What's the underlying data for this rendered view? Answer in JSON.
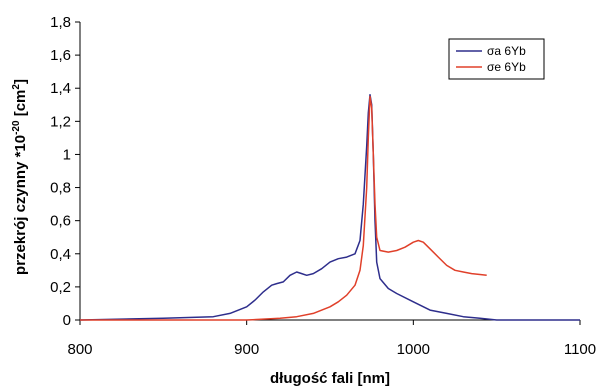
{
  "chart_data": {
    "type": "line",
    "title": "",
    "xlabel": "długość fali [nm]",
    "ylabel_prefix": "przekrój czynny *10",
    "ylabel_exponent": "-20",
    "ylabel_unit_base": " [cm",
    "ylabel_unit_exponent": "2",
    "ylabel_suffix": "]",
    "xlim": [
      800,
      1100
    ],
    "ylim": [
      0,
      1.8
    ],
    "x_ticks": [
      800,
      900,
      1000,
      1100
    ],
    "x_tick_labels": [
      "800",
      "900",
      "1000",
      "1100"
    ],
    "y_ticks": [
      0,
      0.2,
      0.4,
      0.6,
      0.8,
      1.0,
      1.2,
      1.4,
      1.6,
      1.8
    ],
    "y_tick_labels": [
      "0",
      "0,2",
      "0,4",
      "0,6",
      "0,8",
      "1",
      "1,2",
      "1,4",
      "1,6",
      "1,8"
    ],
    "grid": false,
    "legend_position": "top-right",
    "series": [
      {
        "name": "σa 6Yb",
        "color": "#2e2e8c",
        "x": [
          800,
          850,
          880,
          890,
          900,
          905,
          910,
          915,
          918,
          922,
          926,
          930,
          933,
          936,
          940,
          945,
          950,
          955,
          960,
          965,
          968,
          970,
          972,
          973,
          974,
          975,
          976,
          977,
          978,
          980,
          985,
          990,
          1000,
          1010,
          1020,
          1030,
          1040,
          1050,
          1060,
          1080,
          1100
        ],
        "y": [
          0.0,
          0.01,
          0.02,
          0.04,
          0.08,
          0.12,
          0.17,
          0.21,
          0.22,
          0.23,
          0.27,
          0.29,
          0.28,
          0.27,
          0.28,
          0.31,
          0.35,
          0.37,
          0.38,
          0.4,
          0.48,
          0.7,
          1.05,
          1.25,
          1.36,
          1.3,
          1.0,
          0.6,
          0.35,
          0.25,
          0.19,
          0.16,
          0.11,
          0.06,
          0.04,
          0.02,
          0.01,
          0.0,
          0.0,
          0.0,
          0.0
        ]
      },
      {
        "name": "σe 6Yb",
        "color": "#e0402a",
        "x": [
          800,
          900,
          920,
          930,
          940,
          950,
          955,
          960,
          965,
          968,
          970,
          972,
          973,
          974,
          975,
          976,
          977,
          978,
          980,
          985,
          990,
          995,
          1000,
          1003,
          1006,
          1010,
          1015,
          1020,
          1025,
          1030,
          1035,
          1040,
          1044
        ],
        "y": [
          0.0,
          0.0,
          0.01,
          0.02,
          0.04,
          0.08,
          0.11,
          0.15,
          0.21,
          0.3,
          0.45,
          0.8,
          1.1,
          1.35,
          1.28,
          1.0,
          0.7,
          0.5,
          0.42,
          0.41,
          0.42,
          0.44,
          0.47,
          0.48,
          0.47,
          0.43,
          0.38,
          0.33,
          0.3,
          0.29,
          0.28,
          0.275,
          0.27
        ]
      }
    ]
  }
}
